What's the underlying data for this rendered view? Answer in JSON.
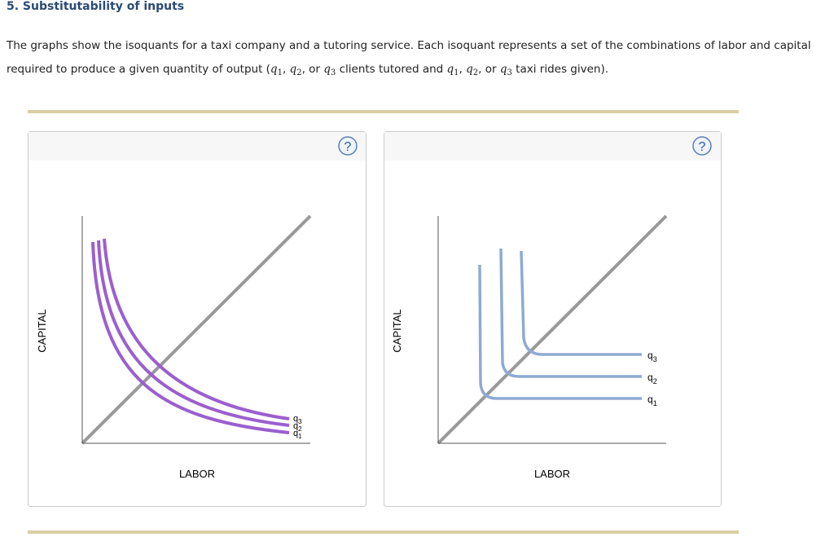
{
  "header": {
    "title": "5. Substitutability of inputs"
  },
  "paragraph": [
    "The graphs show the isoquants for a taxi company and a tutoring service. Each isoquant represents a set of the combinations of labor and capital required to produce a given quantity of output (",
    "q",
    "1",
    ", ",
    "q",
    "2",
    ", or ",
    "q",
    "3",
    " clients tutored and ",
    "q",
    "1",
    ", ",
    "q",
    "2",
    ", or ",
    "q",
    "3",
    " taxi rides given)."
  ],
  "panels": [
    {
      "help": "?",
      "y_label": "CAPITAL",
      "x_label": "LABOR",
      "curve_labels": [
        [
          "q",
          "3"
        ],
        [
          "q",
          "2"
        ],
        [
          "q",
          "1"
        ]
      ]
    },
    {
      "help": "?",
      "y_label": "CAPITAL",
      "x_label": "LABOR",
      "curve_labels": [
        [
          "q",
          "3"
        ],
        [
          "q",
          "2"
        ],
        [
          "q",
          "1"
        ]
      ]
    }
  ]
}
